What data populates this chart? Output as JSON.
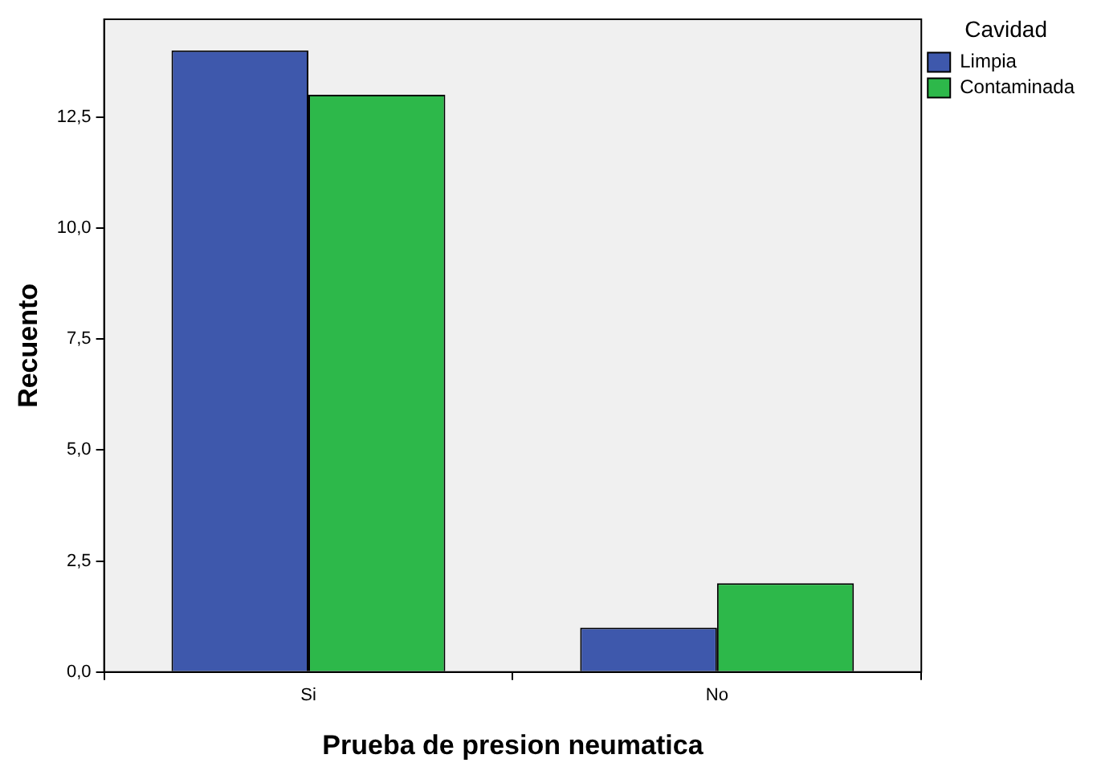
{
  "chart_data": {
    "type": "bar",
    "xlabel": "Prueba de presion neumatica",
    "ylabel": "Recuento",
    "legend_title": "Cavidad",
    "categories": [
      "Si",
      "No"
    ],
    "series": [
      {
        "name": "Limpia",
        "color": "#3e58ac",
        "values": [
          14,
          1
        ]
      },
      {
        "name": "Contaminada",
        "color": "#2db84a",
        "values": [
          13,
          2
        ]
      }
    ],
    "ylim": [
      0,
      14.7
    ],
    "yticks": [
      {
        "value": 0,
        "label": "0,0"
      },
      {
        "value": 2.5,
        "label": "2,5"
      },
      {
        "value": 5,
        "label": "5,0"
      },
      {
        "value": 7.5,
        "label": "7,5"
      },
      {
        "value": 10,
        "label": "10,0"
      },
      {
        "value": 12.5,
        "label": "12,5"
      }
    ],
    "grid": false,
    "legend": "top right"
  }
}
